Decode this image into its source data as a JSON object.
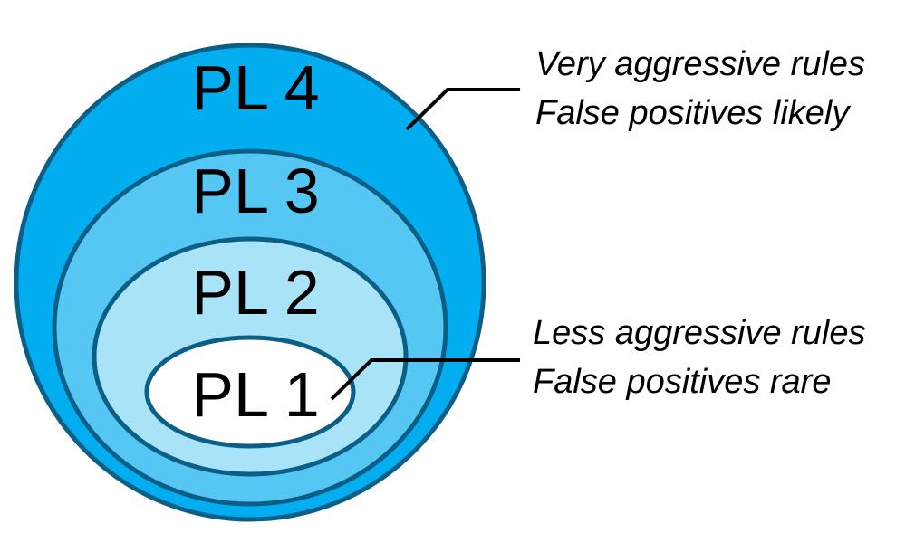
{
  "levels": [
    {
      "label": "PL 4",
      "color": "#02aef0"
    },
    {
      "label": "PL 3",
      "color": "#55c7f2"
    },
    {
      "label": "PL 2",
      "color": "#a9e3f8"
    },
    {
      "label": "PL 1",
      "color": "#ffffff"
    }
  ],
  "annotations": {
    "top": {
      "line1": "Very aggressive rules",
      "line2": "False positives likely"
    },
    "bottom": {
      "line1": "Less aggressive rules",
      "line2": "False positives rare"
    }
  },
  "colors": {
    "ring_stroke": "#0b5f86",
    "leader_line": "#000000"
  }
}
